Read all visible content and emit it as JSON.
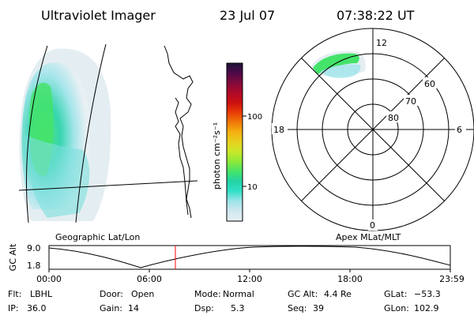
{
  "header": {
    "instrument": "Ultraviolet Imager",
    "date": "23 Jul 07",
    "time": "07:38:22 UT"
  },
  "panels": {
    "left_label": "Geographic Lat/Lon",
    "right_label": "Apex MLat/MLT"
  },
  "colorbar": {
    "unit_label": "photon cm⁻²s⁻¹",
    "ticks": [
      "100",
      "10"
    ],
    "palette": [
      "#e8f0f4",
      "#cfe8ee",
      "#9fe4ea",
      "#33e0c8",
      "#22d3a6",
      "#44e36a",
      "#8ce83a",
      "#c8e82a",
      "#e6d21e",
      "#f4b010",
      "#f07a08",
      "#e83a06",
      "#cc1010",
      "#b00a2a",
      "#820a3c",
      "#4e0a4a",
      "#1c1436"
    ]
  },
  "polar": {
    "mlt_labels": [
      "12",
      "18",
      "6",
      "0"
    ],
    "mlat_labels": [
      "60",
      "70",
      "80"
    ]
  },
  "altitude_plot": {
    "y_label": "GC Alt",
    "y_ticks": [
      "9.0",
      "1.8"
    ],
    "x_ticks": [
      "00:00",
      "06:00",
      "12:00",
      "18:00",
      "23:59"
    ],
    "marker_time": "07:38",
    "marker_color": "#ff0000"
  },
  "status": {
    "row1": [
      {
        "key": "Flt:",
        "value": "LBHL"
      },
      {
        "key": "Door:",
        "value": "Open"
      },
      {
        "key": "Mode:",
        "value": "Normal"
      },
      {
        "key": "GC Alt:",
        "value": "4.4 Re"
      },
      {
        "key": "GLat:",
        "value": "−53.3"
      }
    ],
    "row2": [
      {
        "key": "IP:",
        "value": "36.0"
      },
      {
        "key": "Gain:",
        "value": "14"
      },
      {
        "key": "Dsp:",
        "value": "5.3"
      },
      {
        "key": "Seq:",
        "value": "39"
      },
      {
        "key": "GLon:",
        "value": "102.9"
      }
    ]
  }
}
